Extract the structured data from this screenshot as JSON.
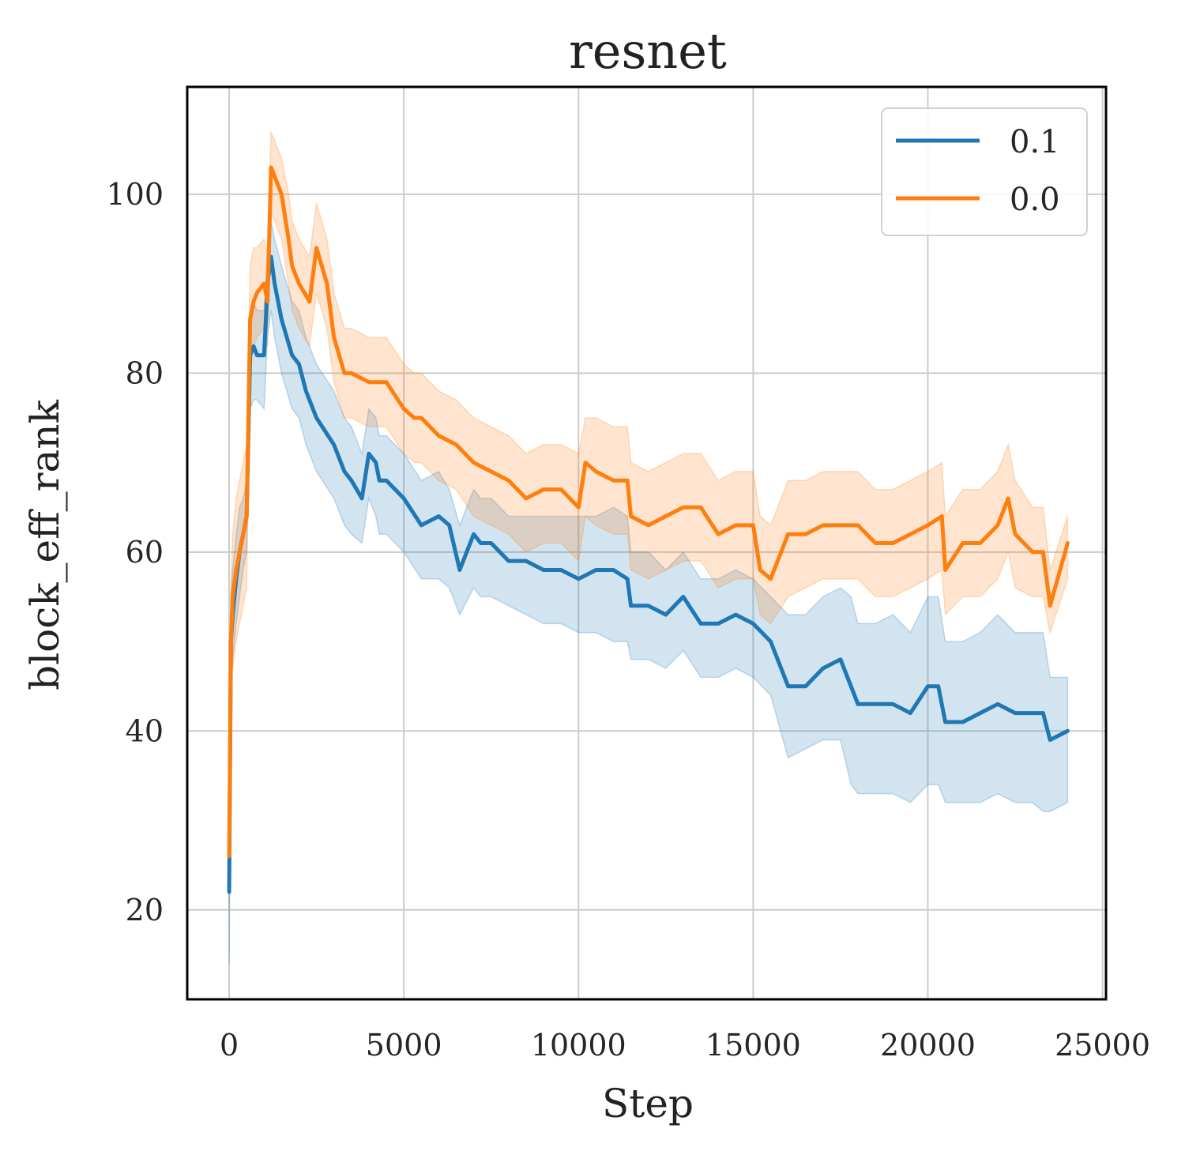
{
  "chart_data": {
    "type": "line",
    "title": "resnet",
    "xlabel": "Step",
    "ylabel": "block_eff_rank",
    "xlim": [
      -1200,
      25100
    ],
    "ylim": [
      10,
      112
    ],
    "xticks": [
      0,
      5000,
      10000,
      15000,
      20000,
      25000
    ],
    "xtick_labels": [
      "0",
      "5000",
      "10000",
      "15000",
      "20000",
      "25000"
    ],
    "yticks": [
      20,
      40,
      60,
      80,
      100
    ],
    "ytick_labels": [
      "20",
      "40",
      "60",
      "80",
      "100"
    ],
    "grid": true,
    "legend_position": "top-right",
    "series": [
      {
        "name": "0.1",
        "color": "#1f77b4",
        "x": [
          0,
          50,
          100,
          200,
          300,
          400,
          500,
          600,
          700,
          800,
          1000,
          1100,
          1200,
          1300,
          1500,
          1800,
          2000,
          2200,
          2500,
          3000,
          3300,
          3500,
          3800,
          4000,
          4200,
          4300,
          4500,
          5000,
          5500,
          6000,
          6300,
          6600,
          7000,
          7200,
          7500,
          8000,
          8500,
          9000,
          9500,
          10000,
          10500,
          11000,
          11400,
          11500,
          12000,
          12500,
          13000,
          13500,
          14000,
          14500,
          15000,
          15500,
          16000,
          16500,
          17000,
          17500,
          17800,
          18000,
          18500,
          19000,
          19500,
          20000,
          20300,
          20500,
          21000,
          21500,
          22000,
          22500,
          23000,
          23300,
          23500,
          24000
        ],
        "values": [
          22,
          50,
          53,
          57,
          60,
          62,
          64,
          82,
          83,
          82,
          82,
          90,
          93,
          90,
          86,
          82,
          81,
          78,
          75,
          72,
          69,
          68,
          66,
          71,
          70,
          68,
          68,
          66,
          63,
          64,
          63,
          58,
          62,
          61,
          61,
          59,
          59,
          58,
          58,
          57,
          58,
          58,
          57,
          54,
          54,
          53,
          55,
          52,
          52,
          53,
          52,
          50,
          45,
          45,
          47,
          48,
          45,
          43,
          43,
          43,
          42,
          45,
          45,
          41,
          41,
          42,
          43,
          42,
          42,
          42,
          39,
          40
        ],
        "lower": [
          14,
          45,
          48,
          52,
          55,
          58,
          60,
          76,
          77,
          77,
          76,
          84,
          87,
          84,
          80,
          76,
          75,
          72,
          69,
          66,
          63,
          62,
          61,
          66,
          64,
          62,
          62,
          60,
          57,
          57,
          56,
          53,
          56,
          55,
          55,
          54,
          53,
          52,
          52,
          51,
          51,
          50,
          50,
          48,
          48,
          47,
          49,
          46,
          46,
          47,
          46,
          44,
          37,
          38,
          39,
          39,
          34,
          33,
          33,
          33,
          32,
          34,
          34,
          32,
          32,
          32,
          33,
          32,
          32,
          31,
          31,
          32
        ],
        "upper": [
          30,
          55,
          58,
          62,
          65,
          66,
          68,
          87,
          88,
          87,
          87,
          94,
          97,
          95,
          92,
          88,
          87,
          84,
          81,
          78,
          75,
          74,
          71,
          76,
          75,
          73,
          73,
          71,
          68,
          69,
          67,
          63,
          67,
          66,
          66,
          64,
          64,
          64,
          64,
          64,
          64,
          65,
          64,
          60,
          60,
          58,
          60,
          57,
          57,
          58,
          57,
          55,
          53,
          53,
          55,
          56,
          55,
          52,
          52,
          53,
          51,
          55,
          55,
          50,
          50,
          51,
          53,
          51,
          51,
          51,
          46,
          46
        ]
      },
      {
        "name": "0.0",
        "color": "#ff7f0e",
        "x": [
          0,
          50,
          100,
          200,
          300,
          400,
          500,
          600,
          700,
          800,
          1000,
          1100,
          1200,
          1300,
          1500,
          1700,
          1800,
          2000,
          2300,
          2500,
          2800,
          3000,
          3300,
          3500,
          4000,
          4500,
          5000,
          5300,
          5500,
          6000,
          6500,
          7000,
          7500,
          8000,
          8500,
          9000,
          9500,
          10000,
          10200,
          10500,
          11000,
          11400,
          11500,
          12000,
          12500,
          13000,
          13500,
          14000,
          14500,
          15000,
          15200,
          15500,
          16000,
          16500,
          17000,
          17500,
          18000,
          18500,
          19000,
          19500,
          20000,
          20400,
          20500,
          21000,
          21500,
          22000,
          22300,
          22500,
          23000,
          23300,
          23500,
          24000
        ],
        "values": [
          26,
          50,
          55,
          58,
          60,
          62,
          64,
          86,
          88,
          89,
          90,
          88,
          103,
          102,
          100,
          95,
          92,
          90,
          88,
          94,
          90,
          84,
          80,
          80,
          79,
          79,
          76,
          75,
          75,
          73,
          72,
          70,
          69,
          68,
          66,
          67,
          67,
          65,
          70,
          69,
          68,
          68,
          64,
          63,
          64,
          65,
          65,
          62,
          63,
          63,
          58,
          57,
          62,
          62,
          63,
          63,
          63,
          61,
          61,
          62,
          63,
          64,
          58,
          61,
          61,
          63,
          66,
          62,
          60,
          60,
          54,
          61
        ],
        "lower": [
          21,
          44,
          47,
          50,
          52,
          54,
          56,
          80,
          83,
          84,
          85,
          83,
          98,
          97,
          95,
          90,
          87,
          85,
          83,
          89,
          85,
          79,
          75,
          75,
          74,
          74,
          71,
          70,
          70,
          68,
          67,
          64,
          63,
          62,
          60,
          61,
          61,
          59,
          64,
          63,
          62,
          62,
          58,
          57,
          58,
          59,
          59,
          56,
          57,
          57,
          53,
          52,
          55,
          56,
          57,
          57,
          57,
          55,
          55,
          56,
          57,
          58,
          53,
          55,
          55,
          57,
          60,
          56,
          55,
          55,
          51,
          57
        ],
        "upper": [
          33,
          56,
          62,
          66,
          68,
          70,
          72,
          92,
          94,
          94,
          95,
          93,
          107,
          106,
          104,
          100,
          97,
          95,
          93,
          99,
          95,
          89,
          85,
          85,
          84,
          84,
          81,
          80,
          80,
          78,
          77,
          75,
          74,
          73,
          71,
          72,
          72,
          71,
          75,
          75,
          74,
          74,
          70,
          69,
          70,
          71,
          71,
          68,
          69,
          69,
          64,
          63,
          68,
          68,
          69,
          69,
          69,
          67,
          67,
          68,
          69,
          70,
          64,
          67,
          67,
          69,
          72,
          68,
          65,
          65,
          58,
          64
        ]
      }
    ]
  }
}
